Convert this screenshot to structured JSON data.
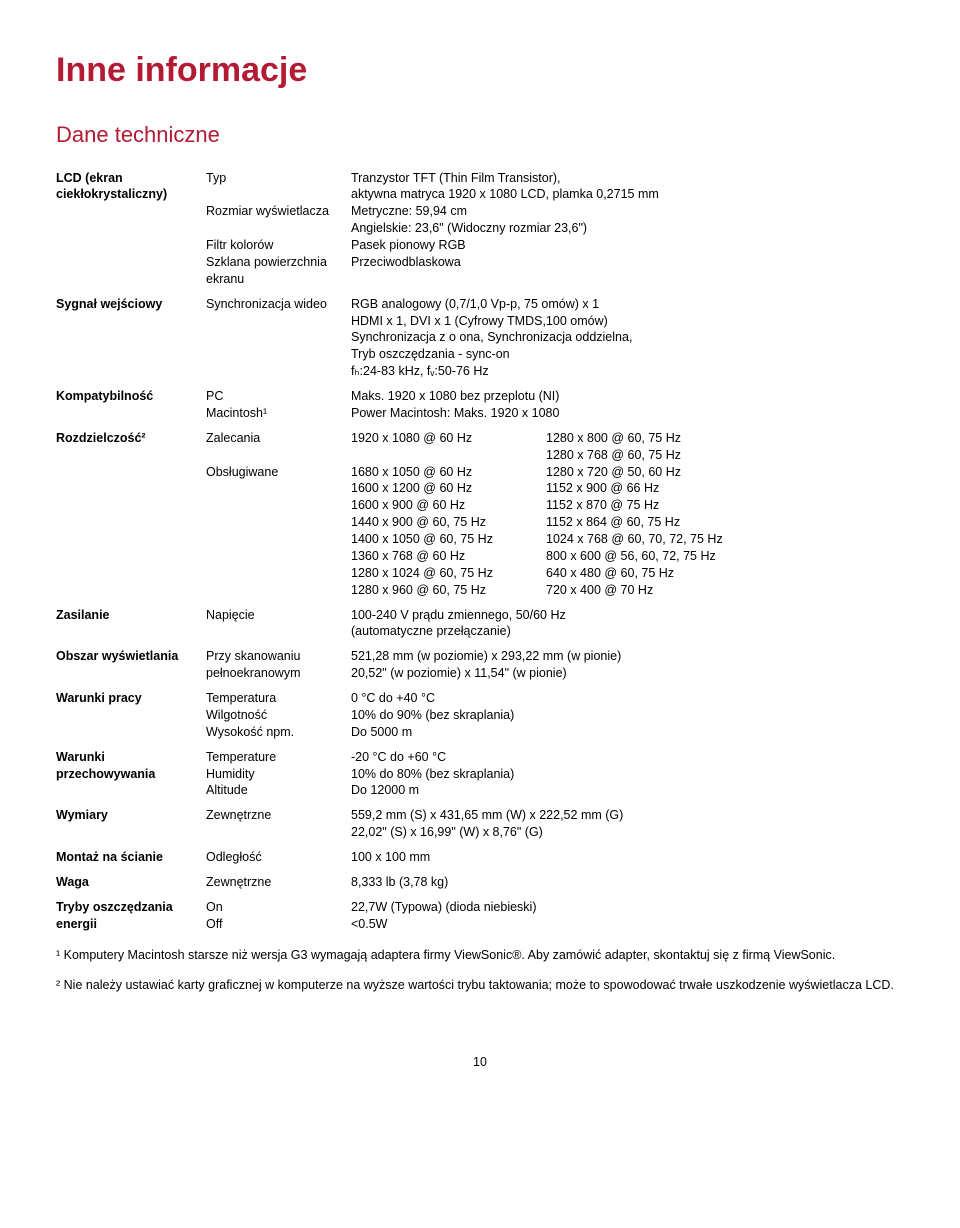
{
  "title": "Inne informacje",
  "subtitle": "Dane techniczne",
  "rows": {
    "lcd": {
      "label": "LCD (ekran ciekłokrystaliczny)",
      "items": [
        {
          "k": "Typ",
          "v": "Tranzystor TFT (Thin Film Transistor),\naktywna matryca 1920 x 1080 LCD, plamka 0,2715 mm"
        },
        {
          "k": "Rozmiar wyświetlacza",
          "v": "Metryczne: 59,94 cm\nAngielskie: 23,6\" (Widoczny rozmiar 23,6\")"
        },
        {
          "k": "Filtr kolorów",
          "v": "Pasek pionowy RGB"
        },
        {
          "k": "Szklana powierzchnia ekranu",
          "v": "Przeciwodblaskowa"
        }
      ]
    },
    "signal": {
      "label": "Sygnał wejściowy",
      "items": [
        {
          "k": "Synchronizacja wideo",
          "v": "RGB analogowy (0,7/1,0 Vp-p, 75 omów) x 1\nHDMI x 1, DVI x 1 (Cyfrowy TMDS,100 omów)\nSynchronizacja z o ona, Synchronizacja oddzielna,\nTryb oszczędzania - sync-on\nfₕ:24-83 kHz, fᵥ:50-76 Hz"
        }
      ]
    },
    "compat": {
      "label": "Kompatybilność",
      "items": [
        {
          "k": "PC",
          "v": "Maks. 1920 x 1080 bez przeplotu (NI)"
        },
        {
          "k": "Macintosh¹",
          "v": "Power Macintosh: Maks. 1920 x 1080"
        }
      ]
    },
    "resolution": {
      "label": "Rozdzielczość²",
      "recommended_k": "Zalecania",
      "supported_k": "Obsługiwane",
      "recommended": [
        {
          "l": "1920 x 1080 @ 60 Hz",
          "r": "1280 x 800 @ 60, 75 Hz"
        },
        {
          "l": "",
          "r": "1280 x 768 @ 60, 75 Hz"
        }
      ],
      "supported": [
        {
          "l": "1680 x 1050 @ 60 Hz",
          "r": "1280 x 720 @ 50, 60 Hz"
        },
        {
          "l": "1600 x 1200 @ 60 Hz",
          "r": "1152 x 900 @ 66 Hz"
        },
        {
          "l": "1600 x 900 @ 60 Hz",
          "r": "1152 x 870 @ 75 Hz"
        },
        {
          "l": "1440 x 900 @ 60, 75 Hz",
          "r": "1152 x 864 @ 60, 75 Hz"
        },
        {
          "l": "1400 x 1050 @ 60, 75 Hz",
          "r": "1024 x 768 @ 60, 70, 72, 75 Hz"
        },
        {
          "l": "1360 x 768 @ 60 Hz",
          "r": "800 x 600 @ 56, 60, 72, 75 Hz"
        },
        {
          "l": "1280 x 1024 @ 60, 75 Hz",
          "r": "640 x 480 @ 60, 75 Hz"
        },
        {
          "l": "1280 x 960 @ 60, 75 Hz",
          "r": "720 x 400 @ 70 Hz"
        }
      ]
    },
    "power": {
      "label": "Zasilanie",
      "items": [
        {
          "k": "Napięcie",
          "v": "100-240 V prądu zmiennego, 50/60 Hz\n(automatyczne przełączanie)"
        }
      ]
    },
    "display_area": {
      "label": "Obszar wyświetlania",
      "items": [
        {
          "k": "Przy skanowaniu pełnoekranowym",
          "v": "521,28 mm (w poziomie) x 293,22 mm (w pionie)\n20,52\" (w poziomie) x 11,54\" (w pionie)"
        }
      ]
    },
    "op_cond": {
      "label": "Warunki pracy",
      "items": [
        {
          "k": "Temperatura",
          "v": "0 °C do +40 °C"
        },
        {
          "k": "Wilgotność",
          "v": "10% do 90% (bez skraplania)"
        },
        {
          "k": "Wysokość npm.",
          "v": "Do 5000 m"
        }
      ]
    },
    "storage_cond": {
      "label": "Warunki przechowywania",
      "items": [
        {
          "k": "Temperature",
          "v": "-20 °C do +60 °C"
        },
        {
          "k": "Humidity",
          "v": "10% do 80% (bez skraplania)"
        },
        {
          "k": "Altitude",
          "v": "Do 12000 m"
        }
      ]
    },
    "dimensions": {
      "label": "Wymiary",
      "items": [
        {
          "k": "Zewnętrzne",
          "v": "559,2 mm (S) x 431,65 mm (W) x 222,52 mm (G)\n22,02\" (S) x 16,99\" (W) x 8,76\" (G)"
        }
      ]
    },
    "wall_mount": {
      "label": "Montaż na ścianie",
      "items": [
        {
          "k": "Odległość",
          "v": "100 x 100 mm"
        }
      ]
    },
    "weight": {
      "label": "Waga",
      "items": [
        {
          "k": "Zewnętrzne",
          "v": "8,333 lb (3,78 kg)"
        }
      ]
    },
    "power_save": {
      "label": "Tryby oszczędzania energii",
      "items": [
        {
          "k": "On",
          "v": "22,7W (Typowa) (dioda niebieski)"
        },
        {
          "k": "Off",
          "v": "<0.5W"
        }
      ]
    }
  },
  "footnote1": "¹ Komputery Macintosh starsze niż wersja G3 wymagają adaptera firmy ViewSonic®. Aby zamówić adapter, skontaktuj się z firmą ViewSonic.",
  "footnote2": "² Nie należy ustawiać karty graficznej w komputerze na wyższe wartości trybu taktowania; może to spowodować trwałe uszkodzenie wyświetlacza LCD.",
  "page_number": "10"
}
